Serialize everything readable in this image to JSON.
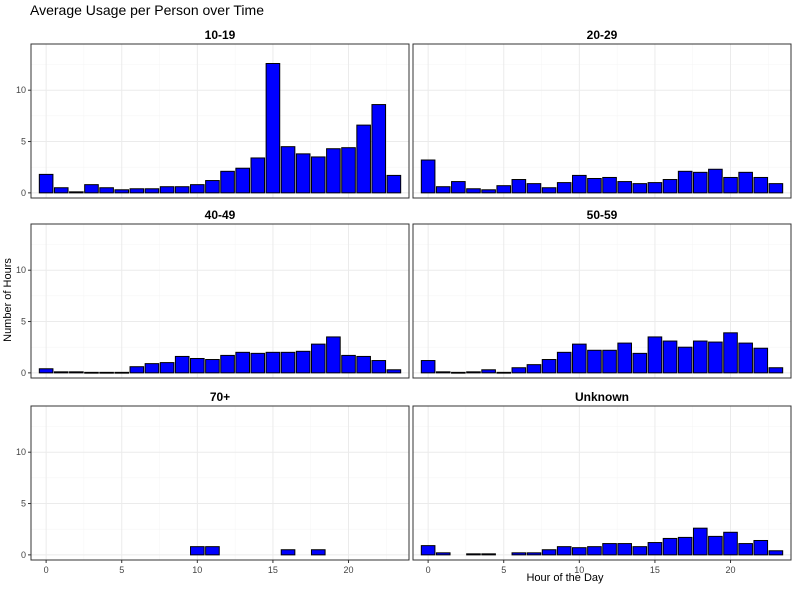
{
  "chart_data": {
    "type": "bar",
    "title": "Average Usage per Person over Time",
    "xlabel": "Hour of the Day",
    "ylabel": "Number of Hours",
    "xlim": [
      -1,
      24
    ],
    "ylim": [
      -0.5,
      14.5
    ],
    "x_ticks": [
      0,
      5,
      10,
      15,
      20
    ],
    "y_ticks": [
      0,
      5,
      10
    ],
    "grid": true,
    "facet_layout": "3 rows x 2 columns, shared axes",
    "colors": {
      "bar_fill": "#0000ff",
      "bar_stroke": "#000000",
      "grid": "#ebebeb",
      "panel_border": "#333333"
    },
    "panels": [
      {
        "label": "10-19",
        "x": [
          0,
          1,
          2,
          3,
          4,
          5,
          6,
          7,
          8,
          9,
          10,
          11,
          12,
          13,
          14,
          15,
          16,
          17,
          18,
          19,
          20,
          21,
          22,
          23
        ],
        "values": [
          1.8,
          0.5,
          0.1,
          0.8,
          0.5,
          0.3,
          0.4,
          0.4,
          0.6,
          0.6,
          0.8,
          1.2,
          2.1,
          2.4,
          3.4,
          12.6,
          4.5,
          3.8,
          3.5,
          4.3,
          4.4,
          6.6,
          8.6,
          1.7
        ]
      },
      {
        "label": "20-29",
        "x": [
          0,
          1,
          2,
          3,
          4,
          5,
          6,
          7,
          8,
          9,
          10,
          11,
          12,
          13,
          14,
          15,
          16,
          17,
          18,
          19,
          20,
          21,
          22,
          23
        ],
        "values": [
          3.2,
          0.6,
          1.1,
          0.4,
          0.3,
          0.7,
          1.3,
          0.9,
          0.5,
          1.0,
          1.7,
          1.4,
          1.5,
          1.1,
          0.9,
          1.0,
          1.3,
          2.1,
          2.0,
          2.3,
          1.5,
          2.0,
          1.5,
          0.9
        ]
      },
      {
        "label": "40-49",
        "x": [
          0,
          1,
          2,
          3,
          4,
          5,
          6,
          7,
          8,
          9,
          10,
          11,
          12,
          13,
          14,
          15,
          16,
          17,
          18,
          19,
          20,
          21,
          22,
          23
        ],
        "values": [
          0.4,
          0.1,
          0.1,
          0.05,
          0.05,
          0.05,
          0.6,
          0.9,
          1.0,
          1.6,
          1.4,
          1.3,
          1.7,
          2.0,
          1.9,
          2.0,
          2.0,
          2.1,
          2.8,
          3.5,
          1.7,
          1.6,
          1.2,
          0.3
        ]
      },
      {
        "label": "50-59",
        "x": [
          0,
          1,
          2,
          3,
          4,
          5,
          6,
          7,
          8,
          9,
          10,
          11,
          12,
          13,
          14,
          15,
          16,
          17,
          18,
          19,
          20,
          21,
          22,
          23
        ],
        "values": [
          1.2,
          0.1,
          0.05,
          0.1,
          0.3,
          0.05,
          0.5,
          0.8,
          1.3,
          2.0,
          2.8,
          2.2,
          2.2,
          2.9,
          1.9,
          3.5,
          3.1,
          2.5,
          3.1,
          3.0,
          3.9,
          2.9,
          2.4,
          0.5
        ]
      },
      {
        "label": "70+",
        "x": [
          10,
          11,
          16,
          18
        ],
        "values": [
          0.8,
          0.8,
          0.5,
          0.5
        ]
      },
      {
        "label": "Unknown",
        "x": [
          0,
          1,
          3,
          4,
          6,
          7,
          8,
          9,
          10,
          11,
          12,
          13,
          14,
          15,
          16,
          17,
          18,
          19,
          20,
          21,
          22,
          23
        ],
        "values": [
          0.9,
          0.2,
          0.1,
          0.1,
          0.2,
          0.2,
          0.5,
          0.8,
          0.7,
          0.8,
          1.1,
          1.1,
          0.8,
          1.2,
          1.6,
          1.7,
          2.6,
          1.8,
          2.2,
          1.1,
          1.4,
          0.4
        ]
      }
    ]
  }
}
